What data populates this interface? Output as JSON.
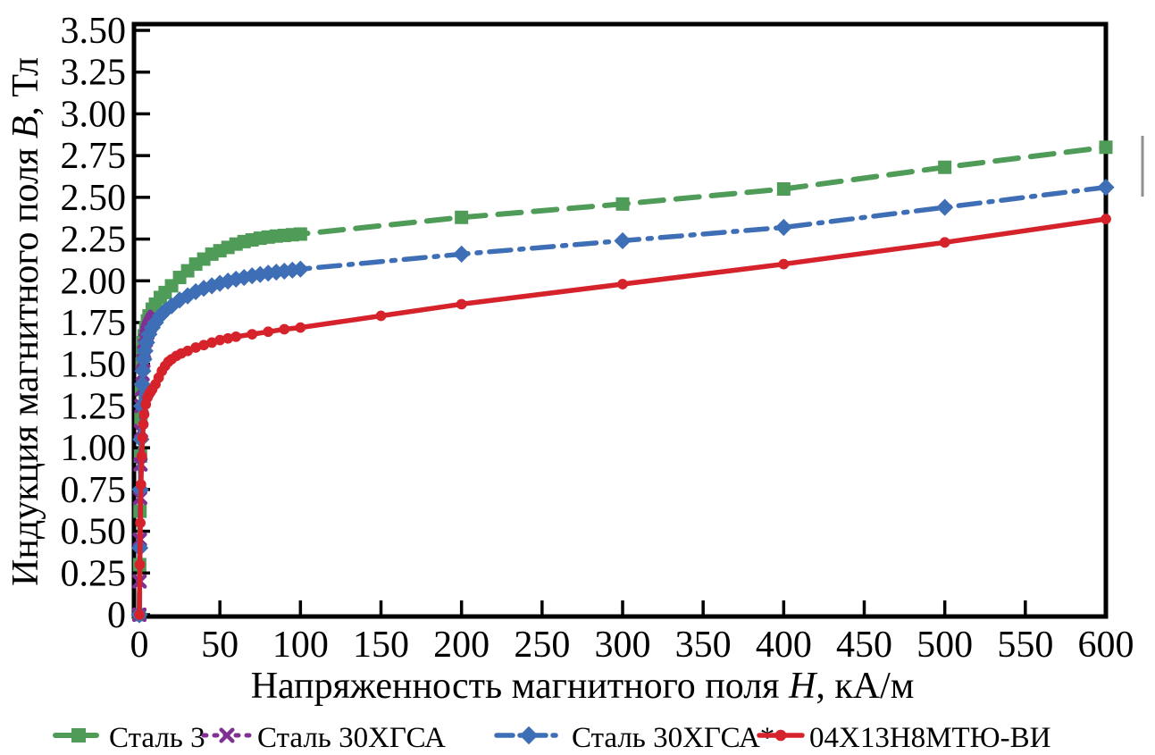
{
  "chart_data": {
    "type": "line",
    "title": "",
    "xlabel": "Напряженность магнитного поля H, кА/м",
    "ylabel": "Индукция магнитного поля B, Тл",
    "xlim": [
      0,
      600
    ],
    "ylim": [
      0,
      3.5
    ],
    "grid": false,
    "legend_position": "bottom",
    "x_axis": {
      "label_prefix": "Напряженность магнитного поля ",
      "label_symbol": "H",
      "label_suffix": ", кА/м",
      "ticks": [
        0,
        50,
        100,
        150,
        200,
        250,
        300,
        350,
        400,
        450,
        500,
        550,
        600
      ],
      "tick_labels": [
        "0",
        "50",
        "100",
        "150",
        "200",
        "250",
        "300",
        "350",
        "400",
        "450",
        "500",
        "550",
        "600"
      ]
    },
    "y_axis": {
      "label_prefix": "Индукция магнитного поля ",
      "label_symbol": "B",
      "label_suffix": ", Тл",
      "ticks": [
        0,
        0.25,
        0.5,
        0.75,
        1.0,
        1.25,
        1.5,
        1.75,
        2.0,
        2.25,
        2.5,
        2.75,
        3.0,
        3.25,
        3.5
      ],
      "tick_labels": [
        "0",
        "0.25",
        "0.50",
        "0.75",
        "1.00",
        "1.25",
        "1.50",
        "1.75",
        "2.00",
        "2.25",
        "2.50",
        "2.75",
        "3.00",
        "3.25",
        "3.50"
      ]
    },
    "series": [
      {
        "id": "stal-3",
        "name": "Сталь 3",
        "color": "#4f9b58",
        "line": "dashed",
        "marker": "square",
        "points": [
          [
            0,
            0
          ],
          [
            0.2,
            0.3
          ],
          [
            0.4,
            0.62
          ],
          [
            0.7,
            0.95
          ],
          [
            1,
            1.18
          ],
          [
            1.3,
            1.35
          ],
          [
            1.7,
            1.5
          ],
          [
            2,
            1.57
          ],
          [
            2.5,
            1.63
          ],
          [
            3,
            1.67
          ],
          [
            4,
            1.72
          ],
          [
            5,
            1.76
          ],
          [
            6,
            1.79
          ],
          [
            8,
            1.83
          ],
          [
            10,
            1.86
          ],
          [
            13,
            1.9
          ],
          [
            16,
            1.93
          ],
          [
            20,
            1.97
          ],
          [
            25,
            2.02
          ],
          [
            30,
            2.06
          ],
          [
            35,
            2.1
          ],
          [
            40,
            2.13
          ],
          [
            45,
            2.16
          ],
          [
            50,
            2.18
          ],
          [
            55,
            2.2
          ],
          [
            60,
            2.22
          ],
          [
            65,
            2.235
          ],
          [
            70,
            2.245
          ],
          [
            75,
            2.255
          ],
          [
            80,
            2.262
          ],
          [
            85,
            2.268
          ],
          [
            90,
            2.272
          ],
          [
            95,
            2.276
          ],
          [
            100,
            2.28
          ],
          [
            200,
            2.38
          ],
          [
            300,
            2.46
          ],
          [
            400,
            2.55
          ],
          [
            500,
            2.68
          ],
          [
            600,
            2.8
          ]
        ]
      },
      {
        "id": "stal-30hgsa",
        "name": "Сталь 30ХГСА",
        "color": "#7e3192",
        "line": "dotted",
        "marker": "x",
        "points": [
          [
            0,
            0
          ],
          [
            0.15,
            0.2
          ],
          [
            0.3,
            0.45
          ],
          [
            0.5,
            0.7
          ],
          [
            0.7,
            0.9
          ],
          [
            1,
            1.1
          ],
          [
            1.3,
            1.25
          ],
          [
            1.6,
            1.35
          ],
          [
            2,
            1.44
          ],
          [
            2.5,
            1.52
          ],
          [
            3,
            1.57
          ],
          [
            3.5,
            1.61
          ],
          [
            4,
            1.645
          ],
          [
            4.5,
            1.67
          ],
          [
            5,
            1.69
          ],
          [
            5.5,
            1.705
          ],
          [
            6,
            1.72
          ],
          [
            6.5,
            1.73
          ],
          [
            7,
            1.74
          ],
          [
            7.5,
            1.75
          ],
          [
            8,
            1.76
          ],
          [
            8.5,
            1.768
          ],
          [
            9,
            1.775
          ],
          [
            9.5,
            1.78
          ],
          [
            10,
            1.785
          ]
        ]
      },
      {
        "id": "stal-30hgsa-star",
        "name": "Сталь 30ХГСА*",
        "color": "#3e6eb5",
        "line": "dashdot",
        "marker": "diamond",
        "points": [
          [
            0,
            0
          ],
          [
            0.3,
            0.4
          ],
          [
            0.6,
            0.75
          ],
          [
            1,
            1.05
          ],
          [
            1.4,
            1.25
          ],
          [
            1.8,
            1.38
          ],
          [
            2.2,
            1.46
          ],
          [
            2.8,
            1.53
          ],
          [
            3.5,
            1.58
          ],
          [
            4.5,
            1.63
          ],
          [
            6,
            1.68
          ],
          [
            8,
            1.72
          ],
          [
            10,
            1.75
          ],
          [
            13,
            1.79
          ],
          [
            16,
            1.82
          ],
          [
            20,
            1.85
          ],
          [
            25,
            1.885
          ],
          [
            30,
            1.91
          ],
          [
            35,
            1.935
          ],
          [
            40,
            1.955
          ],
          [
            45,
            1.97
          ],
          [
            50,
            1.985
          ],
          [
            55,
            1.998
          ],
          [
            60,
            2.01
          ],
          [
            65,
            2.02
          ],
          [
            70,
            2.03
          ],
          [
            75,
            2.038
          ],
          [
            80,
            2.046
          ],
          [
            85,
            2.052
          ],
          [
            90,
            2.058
          ],
          [
            95,
            2.064
          ],
          [
            100,
            2.07
          ],
          [
            200,
            2.16
          ],
          [
            300,
            2.24
          ],
          [
            400,
            2.32
          ],
          [
            500,
            2.44
          ],
          [
            600,
            2.56
          ]
        ]
      },
      {
        "id": "04h13n8mtyu-vi",
        "name": "04Х13Н8МТЮ-ВИ",
        "color": "#d5222b",
        "line": "solid",
        "marker": "circle",
        "points": [
          [
            0,
            0
          ],
          [
            0.3,
            0.3
          ],
          [
            0.6,
            0.55
          ],
          [
            1,
            0.78
          ],
          [
            1.5,
            0.95
          ],
          [
            2,
            1.06
          ],
          [
            2.5,
            1.14
          ],
          [
            3,
            1.2
          ],
          [
            4,
            1.26
          ],
          [
            5,
            1.3
          ],
          [
            6,
            1.32
          ],
          [
            7,
            1.335
          ],
          [
            8,
            1.35
          ],
          [
            10,
            1.38
          ],
          [
            12,
            1.42
          ],
          [
            14,
            1.46
          ],
          [
            16,
            1.49
          ],
          [
            18,
            1.515
          ],
          [
            20,
            1.53
          ],
          [
            23,
            1.55
          ],
          [
            26,
            1.565
          ],
          [
            30,
            1.58
          ],
          [
            35,
            1.6
          ],
          [
            40,
            1.615
          ],
          [
            45,
            1.63
          ],
          [
            50,
            1.645
          ],
          [
            55,
            1.655
          ],
          [
            60,
            1.665
          ],
          [
            70,
            1.68
          ],
          [
            80,
            1.695
          ],
          [
            90,
            1.71
          ],
          [
            100,
            1.72
          ],
          [
            150,
            1.79
          ],
          [
            200,
            1.86
          ],
          [
            300,
            1.98
          ],
          [
            400,
            2.1
          ],
          [
            500,
            2.23
          ],
          [
            600,
            2.37
          ]
        ]
      }
    ]
  }
}
